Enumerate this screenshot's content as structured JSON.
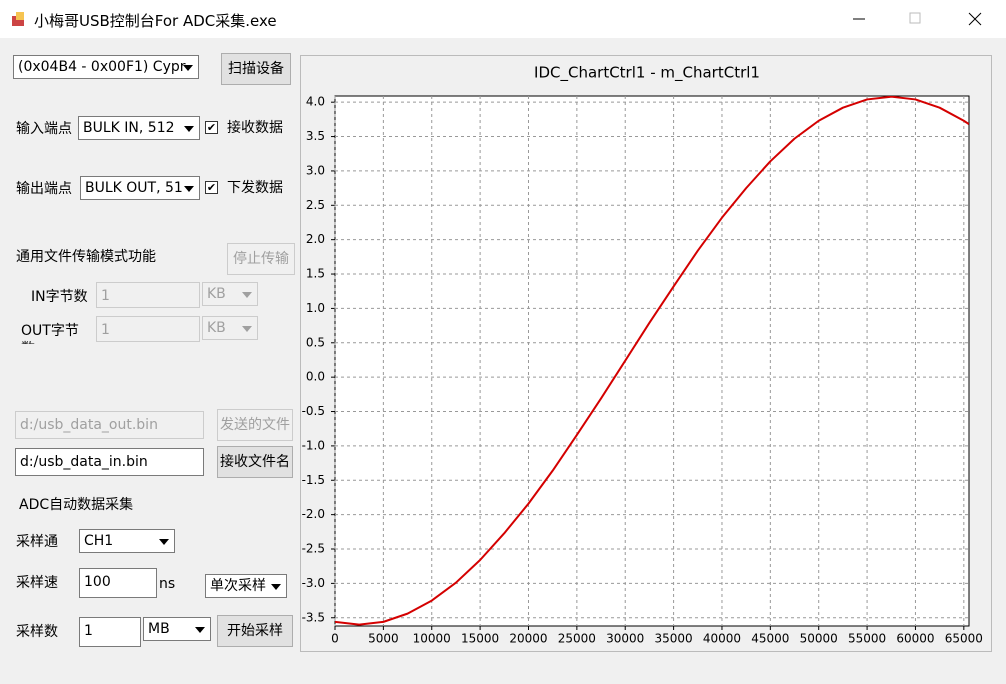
{
  "window": {
    "title": "小梅哥USB控制台For ADC采集.exe"
  },
  "controls": {
    "device_combo": "(0x04B4 - 0x00F1) Cypr",
    "scan_button": "扫描设备",
    "in_endpoint_label": "输入端点",
    "in_endpoint_combo": "BULK IN, 512",
    "receive_checkbox": "接收数据",
    "out_endpoint_label": "输出端点",
    "out_endpoint_combo": "BULK OUT, 51",
    "send_checkbox": "下发数据",
    "file_mode_label": "通用文件传输模式功能",
    "stop_button": "停止传输",
    "in_bytes_label": "IN字节数",
    "in_bytes_input": "1",
    "in_bytes_unit": "KB",
    "out_bytes_label": "OUT字节数",
    "out_bytes_input": "1",
    "out_bytes_unit": "KB",
    "out_file_input": "d:/usb_data_out.bin",
    "send_file_button": "发送的文件",
    "in_file_input": "d:/usb_data_in.bin",
    "recv_file_button": "接收文件名",
    "adc_label": "ADC自动数据采集",
    "channel_label": "采样通",
    "channel_combo": "CH1",
    "rate_label": "采样速",
    "rate_input": "100",
    "rate_unit": "ns",
    "mode_combo": "单次采样",
    "count_label": "采样数",
    "count_input": "1",
    "count_unit_combo": "MB",
    "start_button": "开始采样"
  },
  "chart_data": {
    "type": "line",
    "title": "IDC_ChartCtrl1 - m_ChartCtrl1",
    "x": [
      0,
      2500,
      5000,
      7500,
      10000,
      12500,
      15000,
      17500,
      20000,
      22500,
      25000,
      27500,
      30000,
      32500,
      35000,
      37500,
      40000,
      42500,
      45000,
      47500,
      50000,
      52500,
      55000,
      57500,
      60000,
      62500,
      65000,
      65535
    ],
    "series": [
      {
        "color": "#d40000",
        "values": [
          -3.56,
          -3.6,
          -3.56,
          -3.44,
          -3.25,
          -2.99,
          -2.66,
          -2.27,
          -1.84,
          -1.36,
          -0.84,
          -0.31,
          0.24,
          0.79,
          1.32,
          1.84,
          2.32,
          2.75,
          3.14,
          3.47,
          3.73,
          3.92,
          4.04,
          4.08,
          4.04,
          3.92,
          3.73,
          3.68
        ]
      }
    ],
    "xlim": [
      0,
      65535
    ],
    "ylim": [
      -3.62,
      4.09
    ],
    "xticks": [
      0,
      5000,
      10000,
      15000,
      20000,
      25000,
      30000,
      35000,
      40000,
      45000,
      50000,
      55000,
      60000,
      65000
    ],
    "yticks": [
      {
        "value": 4,
        "label": "4.0"
      },
      3.5,
      {
        "value": 3,
        "label": "3.0"
      },
      2.5,
      {
        "value": 2,
        "label": "2.0"
      },
      1.5,
      {
        "value": 1,
        "label": "1.0"
      },
      0.5,
      {
        "value": 0,
        "label": "0.0"
      },
      -0.5,
      {
        "value": -1,
        "label": "-1.0"
      },
      -1.5,
      {
        "value": -2,
        "label": "-2.0"
      },
      -2.5,
      {
        "value": -3,
        "label": "-3.0"
      },
      -3.5
    ],
    "grid": true
  }
}
